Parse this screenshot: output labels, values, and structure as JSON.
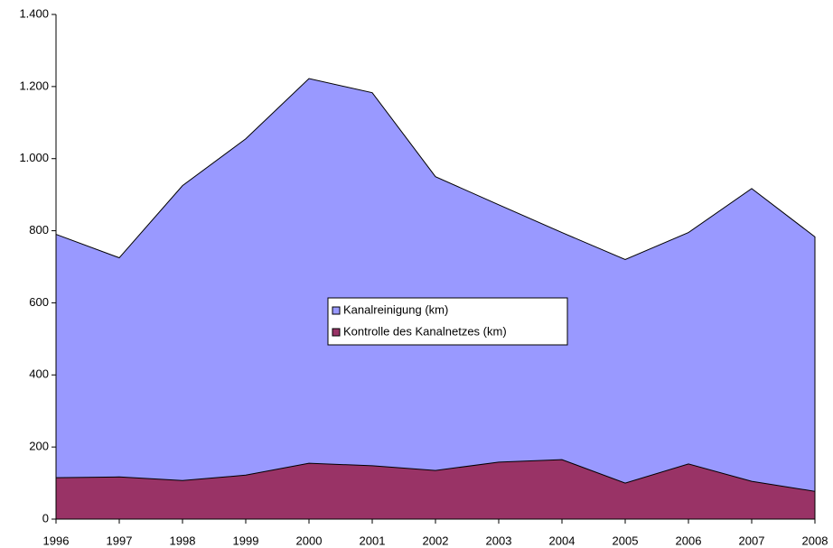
{
  "chart_data": {
    "type": "area",
    "categories": [
      "1996",
      "1997",
      "1998",
      "1999",
      "2000",
      "2001",
      "2002",
      "2003",
      "2004",
      "2005",
      "2006",
      "2007",
      "2008"
    ],
    "series": [
      {
        "name": "Kanalreinigung (km)",
        "color": "#9999ff",
        "values": [
          790,
          725,
          925,
          1055,
          1222,
          1183,
          950,
          872,
          795,
          720,
          795,
          917,
          783
        ]
      },
      {
        "name": "Kontrolle des Kanalnetzes (km)",
        "color": "#993366",
        "values": [
          115,
          117,
          107,
          122,
          155,
          148,
          135,
          158,
          165,
          100,
          153,
          105,
          77
        ]
      }
    ],
    "ylim": [
      0,
      1400
    ],
    "yticks": [
      0,
      200,
      400,
      600,
      800,
      {
        "value": 1000,
        "label": "1.000"
      },
      {
        "value": 1200,
        "label": "1.200"
      },
      {
        "value": 1400,
        "label": "1.400"
      }
    ],
    "legend": "center"
  }
}
